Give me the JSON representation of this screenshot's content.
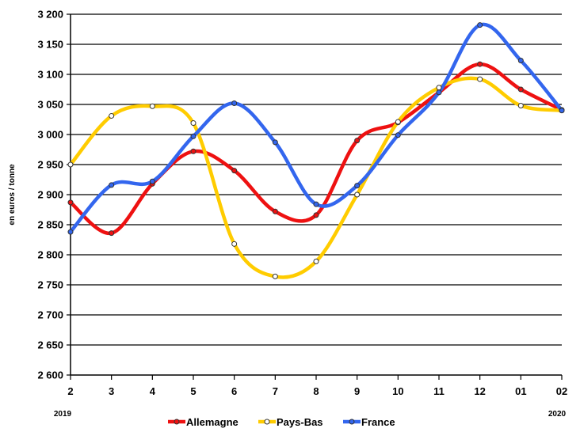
{
  "chart_data": {
    "type": "line",
    "ylabel": "en euros / tonne",
    "ylim": [
      2600,
      3200
    ],
    "yticks": [
      2600,
      2650,
      2700,
      2750,
      2800,
      2850,
      2900,
      2950,
      3000,
      3050,
      3100,
      3150,
      3200
    ],
    "ytick_labels": [
      "2 600",
      "2 650",
      "2 700",
      "2 750",
      "2 800",
      "2 850",
      "2 900",
      "2 950",
      "3 000",
      "3 050",
      "3 100",
      "3 150",
      "3 200"
    ],
    "categories": [
      "2",
      "3",
      "4",
      "5",
      "6",
      "7",
      "8",
      "9",
      "10",
      "11",
      "12",
      "01",
      "02"
    ],
    "year_labels": {
      "start": "2019",
      "end": "2020"
    },
    "grid": true,
    "legend_position": "bottom",
    "series": [
      {
        "name": "Allemagne",
        "color": "#ee1111",
        "marker_fill": "#ee1111",
        "values": [
          2887,
          2836,
          2918,
          2972,
          2940,
          2872,
          2866,
          2990,
          3020,
          3070,
          3117,
          3075,
          3041
        ]
      },
      {
        "name": "Pays-Bas",
        "color": "#ffcc00",
        "marker_fill": "#ffffff",
        "values": [
          2950,
          3031,
          3047,
          3019,
          2818,
          2764,
          2789,
          2900,
          3021,
          3078,
          3092,
          3048,
          3040
        ]
      },
      {
        "name": "France",
        "color": "#3366ee",
        "marker_fill": "#3366ee",
        "values": [
          2838,
          2916,
          2922,
          2997,
          3052,
          2987,
          2884,
          2915,
          2999,
          3070,
          3182,
          3123,
          3040
        ]
      }
    ]
  }
}
